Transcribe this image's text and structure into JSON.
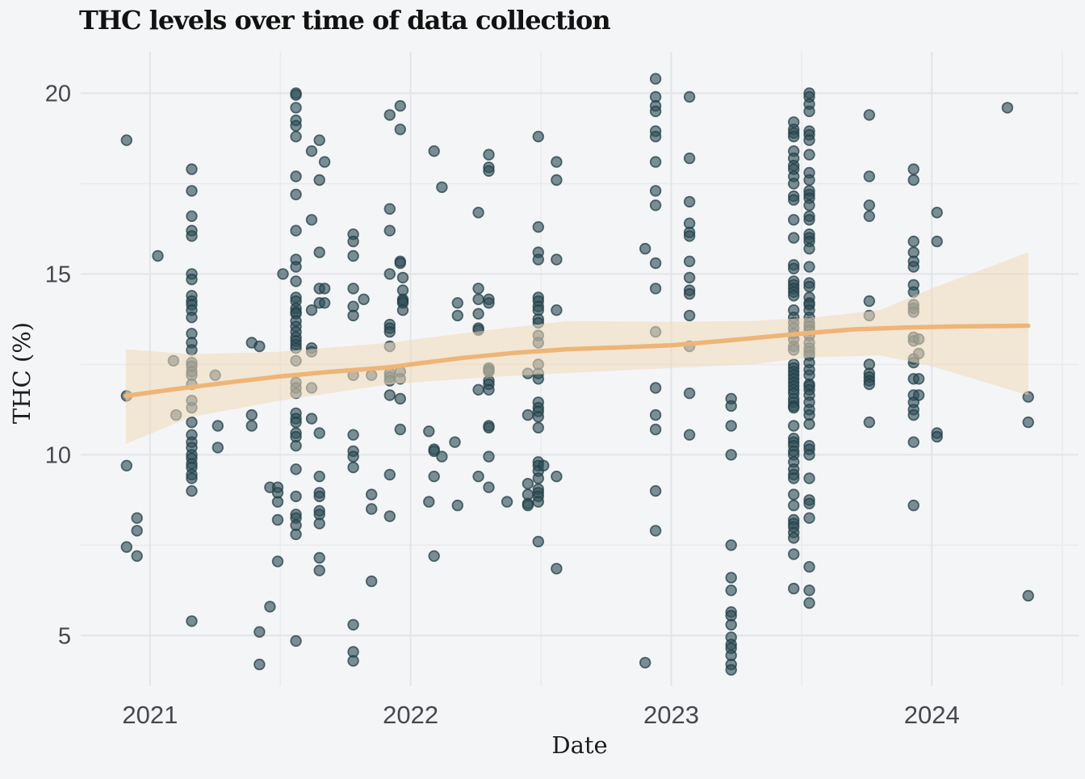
{
  "title": "THC levels over time of data collection",
  "colors": {
    "background": "#f4f5f7",
    "grid_major": "#e2e4e8",
    "grid_minor": "#e9ebee",
    "point_fill": "#2e4d55",
    "point_stroke": "#223f47",
    "trend_line": "#eeb577",
    "ribbon": "#f1d9ba",
    "tick_text": "#45484c",
    "title_text": "#121212",
    "axis_title_text": "#1c1c1c"
  },
  "chart_data": {
    "type": "scatter",
    "title": "THC levels over time of data collection",
    "xlabel": "Date",
    "ylabel": "THC (%)",
    "x_range": [
      2020.734,
      2024.563
    ],
    "y_range": [
      3.6,
      21.15
    ],
    "grid": true,
    "legend": "none",
    "x_ticks": [
      2021,
      2022,
      2023,
      2024
    ],
    "x_minor_ticks": [
      2021.5,
      2022.5,
      2023.5,
      2024.5
    ],
    "y_ticks": [
      5,
      10,
      15,
      20
    ],
    "y_minor_ticks": [
      7.5,
      12.5,
      17.5
    ],
    "points_by_date": [
      {
        "x": 2020.91,
        "y": [
          18.7,
          11.63,
          9.7,
          7.45
        ]
      },
      {
        "x": 2020.95,
        "y": [
          8.25,
          7.9,
          7.2
        ]
      },
      {
        "x": 2021.03,
        "y": [
          15.5
        ]
      },
      {
        "x": 2021.09,
        "y": [
          12.6
        ]
      },
      {
        "x": 2021.1,
        "y": [
          11.1
        ]
      },
      {
        "x": 2021.16,
        "y": [
          17.9,
          17.3,
          16.6,
          16.2,
          16.05,
          15.0,
          14.85,
          14.4,
          14.25,
          14.15,
          14.0,
          13.8,
          13.35,
          13.1,
          12.9,
          12.55,
          12.45,
          12.3,
          12.2,
          11.95,
          11.5,
          11.3,
          10.9,
          10.55,
          10.35,
          10.2,
          10.0,
          9.9,
          9.75,
          9.65,
          9.45,
          9.35,
          9.0,
          5.4
        ]
      },
      {
        "x": 2021.25,
        "y": [
          12.2
        ]
      },
      {
        "x": 2021.26,
        "y": [
          10.8,
          10.2
        ]
      },
      {
        "x": 2021.39,
        "y": [
          13.1,
          11.1,
          10.8
        ]
      },
      {
        "x": 2021.42,
        "y": [
          13.0,
          5.1,
          4.2
        ]
      },
      {
        "x": 2021.46,
        "y": [
          9.1,
          5.8
        ]
      },
      {
        "x": 2021.49,
        "y": [
          9.1,
          8.95,
          8.7,
          8.2,
          7.05
        ]
      },
      {
        "x": 2021.51,
        "y": [
          15.0
        ]
      },
      {
        "x": 2021.56,
        "y": [
          20.0,
          19.95,
          19.6,
          19.25,
          19.1,
          18.8,
          17.7,
          17.2,
          16.2,
          15.4,
          15.2,
          14.8,
          14.35,
          14.25,
          14.05,
          13.95,
          13.9,
          13.7,
          13.55,
          13.4,
          13.25,
          13.15,
          13.05,
          12.95,
          12.6,
          12.0,
          11.85,
          11.7,
          11.15,
          11.0,
          10.9,
          10.6,
          10.5,
          10.25,
          9.6,
          8.85,
          8.35,
          8.25,
          8.05,
          7.8,
          4.85
        ]
      },
      {
        "x": 2021.62,
        "y": [
          18.4,
          16.5,
          14.0,
          12.95,
          12.85,
          11.85,
          11.0
        ]
      },
      {
        "x": 2021.65,
        "y": [
          18.7,
          17.6,
          15.6,
          14.6,
          14.2,
          10.6,
          9.4,
          8.95,
          8.85,
          8.45,
          8.35,
          8.1,
          7.15,
          6.8
        ]
      },
      {
        "x": 2021.67,
        "y": [
          18.1,
          14.6,
          14.2
        ]
      },
      {
        "x": 2021.78,
        "y": [
          16.1,
          15.9,
          15.5,
          14.6,
          14.1,
          13.85,
          12.2,
          10.55,
          10.1,
          9.95,
          9.65,
          5.3,
          4.55,
          4.3
        ]
      },
      {
        "x": 2021.82,
        "y": [
          14.3
        ]
      },
      {
        "x": 2021.85,
        "y": [
          12.2,
          8.9,
          8.5,
          6.5
        ]
      },
      {
        "x": 2021.92,
        "y": [
          19.4,
          16.8,
          16.2,
          15.0,
          13.6,
          13.5,
          13.4,
          13.0,
          12.25,
          12.15,
          12.05,
          11.65,
          9.45,
          8.3
        ]
      },
      {
        "x": 2021.96,
        "y": [
          19.65,
          19.0,
          15.35,
          15.3,
          12.3,
          12.1,
          11.55,
          10.7
        ]
      },
      {
        "x": 2021.97,
        "y": [
          14.9,
          14.55,
          14.3,
          14.25,
          14.2,
          14.0
        ]
      },
      {
        "x": 2022.07,
        "y": [
          10.65,
          8.7
        ]
      },
      {
        "x": 2022.09,
        "y": [
          18.4,
          10.15,
          10.1,
          9.4,
          7.2
        ]
      },
      {
        "x": 2022.12,
        "y": [
          17.4,
          9.95
        ]
      },
      {
        "x": 2022.17,
        "y": [
          10.35
        ]
      },
      {
        "x": 2022.18,
        "y": [
          14.2,
          13.85,
          8.6
        ]
      },
      {
        "x": 2022.26,
        "y": [
          16.7,
          14.6,
          14.3,
          13.9,
          13.5,
          13.45,
          11.8,
          9.4
        ]
      },
      {
        "x": 2022.3,
        "y": [
          18.3,
          17.95,
          17.85,
          14.3,
          14.2,
          12.4,
          12.35,
          12.3,
          12.05,
          11.95,
          11.8,
          10.8,
          10.75,
          9.95,
          9.1
        ]
      },
      {
        "x": 2022.37,
        "y": [
          8.7
        ]
      },
      {
        "x": 2022.45,
        "y": [
          12.25,
          11.1,
          9.2,
          8.9,
          8.65,
          8.6
        ]
      },
      {
        "x": 2022.49,
        "y": [
          18.8,
          16.3,
          15.6,
          15.4,
          14.35,
          14.25,
          14.1,
          14.0,
          13.75,
          13.65,
          13.3,
          13.1,
          12.5,
          12.25,
          12.1,
          11.45,
          11.3,
          11.2,
          11.05,
          10.75,
          9.8,
          9.7,
          9.55,
          9.35,
          9.05,
          8.95,
          8.85,
          8.7,
          7.6
        ]
      },
      {
        "x": 2022.51,
        "y": [
          9.7
        ]
      },
      {
        "x": 2022.56,
        "y": [
          18.1,
          17.6,
          15.4,
          14.0,
          9.4,
          6.85
        ]
      },
      {
        "x": 2022.9,
        "y": [
          15.7,
          4.25
        ]
      },
      {
        "x": 2022.94,
        "y": [
          20.4,
          19.9,
          19.65,
          19.5,
          18.95,
          18.8,
          18.1,
          17.3,
          16.9,
          15.3,
          14.6,
          13.4,
          11.85,
          11.1,
          10.7,
          9.0,
          7.9
        ]
      },
      {
        "x": 2023.07,
        "y": [
          19.9,
          18.2,
          17.0,
          16.4,
          16.15,
          16.05,
          15.35,
          14.9,
          14.55,
          14.45,
          13.85,
          13.0,
          11.7,
          10.55
        ]
      },
      {
        "x": 2023.23,
        "y": [
          11.55,
          11.35,
          10.8,
          10.0,
          7.5,
          6.6,
          6.25,
          5.65,
          5.55,
          5.3,
          4.95,
          4.75,
          4.65,
          4.45,
          4.2,
          4.05
        ]
      },
      {
        "x": 2023.47,
        "y": [
          19.2,
          19.0,
          18.9,
          18.8,
          18.4,
          18.2,
          18.0,
          17.9,
          17.7,
          17.5,
          17.15,
          17.05,
          16.5,
          16.0,
          15.25,
          15.15,
          14.8,
          14.7,
          14.6,
          14.5,
          14.4,
          14.0,
          13.8,
          13.65,
          13.5,
          13.35,
          13.2,
          13.0,
          12.9,
          12.5,
          12.4,
          12.3,
          12.2,
          12.1,
          12.0,
          11.9,
          11.8,
          11.7,
          11.55,
          11.45,
          11.35,
          11.3,
          10.8,
          10.45,
          10.35,
          10.25,
          10.1,
          10.0,
          9.8,
          9.6,
          9.45,
          9.35,
          8.9,
          8.6,
          8.2,
          8.1,
          8.0,
          7.85,
          7.7,
          7.25,
          6.3
        ]
      },
      {
        "x": 2023.53,
        "y": [
          20.0,
          19.9,
          19.7,
          19.5,
          18.95,
          18.85,
          18.7,
          18.3,
          17.8,
          17.6,
          17.3,
          17.2,
          17.1,
          16.9,
          16.6,
          16.5,
          16.1,
          16.0,
          15.9,
          15.7,
          15.2,
          14.75,
          14.65,
          14.35,
          14.2,
          14.15,
          14.0,
          13.8,
          13.65,
          13.55,
          13.45,
          13.3,
          13.1,
          12.95,
          12.85,
          12.75,
          12.55,
          12.35,
          12.2,
          11.95,
          11.9,
          11.8,
          11.65,
          11.45,
          11.25,
          11.1,
          10.85,
          10.25,
          10.15,
          10.0,
          9.35,
          8.75,
          8.65,
          8.25,
          6.9,
          6.25,
          5.9
        ]
      },
      {
        "x": 2023.76,
        "y": [
          19.4,
          17.7,
          16.9,
          16.6,
          14.25,
          13.85,
          12.5,
          12.25,
          12.15,
          12.05,
          11.95,
          10.9
        ]
      },
      {
        "x": 2023.93,
        "y": [
          17.9,
          17.6,
          15.9,
          15.6,
          15.35,
          15.2,
          14.7,
          14.5,
          14.15,
          14.05,
          13.95,
          13.25,
          13.15,
          12.65,
          12.55,
          12.1,
          11.65,
          11.45,
          11.25,
          11.1,
          10.35,
          8.6
        ]
      },
      {
        "x": 2023.95,
        "y": [
          13.2,
          12.8,
          12.1,
          11.65
        ]
      },
      {
        "x": 2024.02,
        "y": [
          16.7,
          15.9,
          10.6,
          10.5
        ]
      },
      {
        "x": 2024.29,
        "y": [
          19.6
        ]
      },
      {
        "x": 2024.37,
        "y": [
          11.6,
          10.9,
          6.1
        ]
      }
    ],
    "trend_line": [
      [
        2020.907,
        11.63
      ],
      [
        2021.1,
        11.82
      ],
      [
        2021.3,
        12.0
      ],
      [
        2021.5,
        12.17
      ],
      [
        2021.7,
        12.3
      ],
      [
        2021.92,
        12.42
      ],
      [
        2022.0,
        12.5
      ],
      [
        2022.2,
        12.68
      ],
      [
        2022.4,
        12.82
      ],
      [
        2022.6,
        12.92
      ],
      [
        2022.8,
        12.97
      ],
      [
        2023.0,
        13.03
      ],
      [
        2023.2,
        13.15
      ],
      [
        2023.35,
        13.25
      ],
      [
        2023.5,
        13.35
      ],
      [
        2023.7,
        13.47
      ],
      [
        2023.9,
        13.52
      ],
      [
        2024.1,
        13.55
      ],
      [
        2024.37,
        13.57
      ]
    ],
    "ribbon": {
      "upper": [
        [
          2020.907,
          12.92
        ],
        [
          2021.16,
          12.78
        ],
        [
          2021.5,
          12.85
        ],
        [
          2021.92,
          13.1
        ],
        [
          2022.3,
          13.45
        ],
        [
          2022.6,
          13.7
        ],
        [
          2023.0,
          13.68
        ],
        [
          2023.3,
          13.7
        ],
        [
          2023.55,
          13.8
        ],
        [
          2023.8,
          14.0
        ],
        [
          2024.0,
          14.6
        ],
        [
          2024.37,
          15.6
        ]
      ],
      "lower": [
        [
          2020.907,
          10.3
        ],
        [
          2021.16,
          11.05
        ],
        [
          2021.5,
          11.5
        ],
        [
          2021.92,
          11.95
        ],
        [
          2022.3,
          12.15
        ],
        [
          2022.7,
          12.3
        ],
        [
          2023.0,
          12.4
        ],
        [
          2023.3,
          12.5
        ],
        [
          2023.55,
          12.7
        ],
        [
          2023.8,
          12.75
        ],
        [
          2024.0,
          12.45
        ],
        [
          2024.37,
          11.65
        ]
      ]
    }
  }
}
